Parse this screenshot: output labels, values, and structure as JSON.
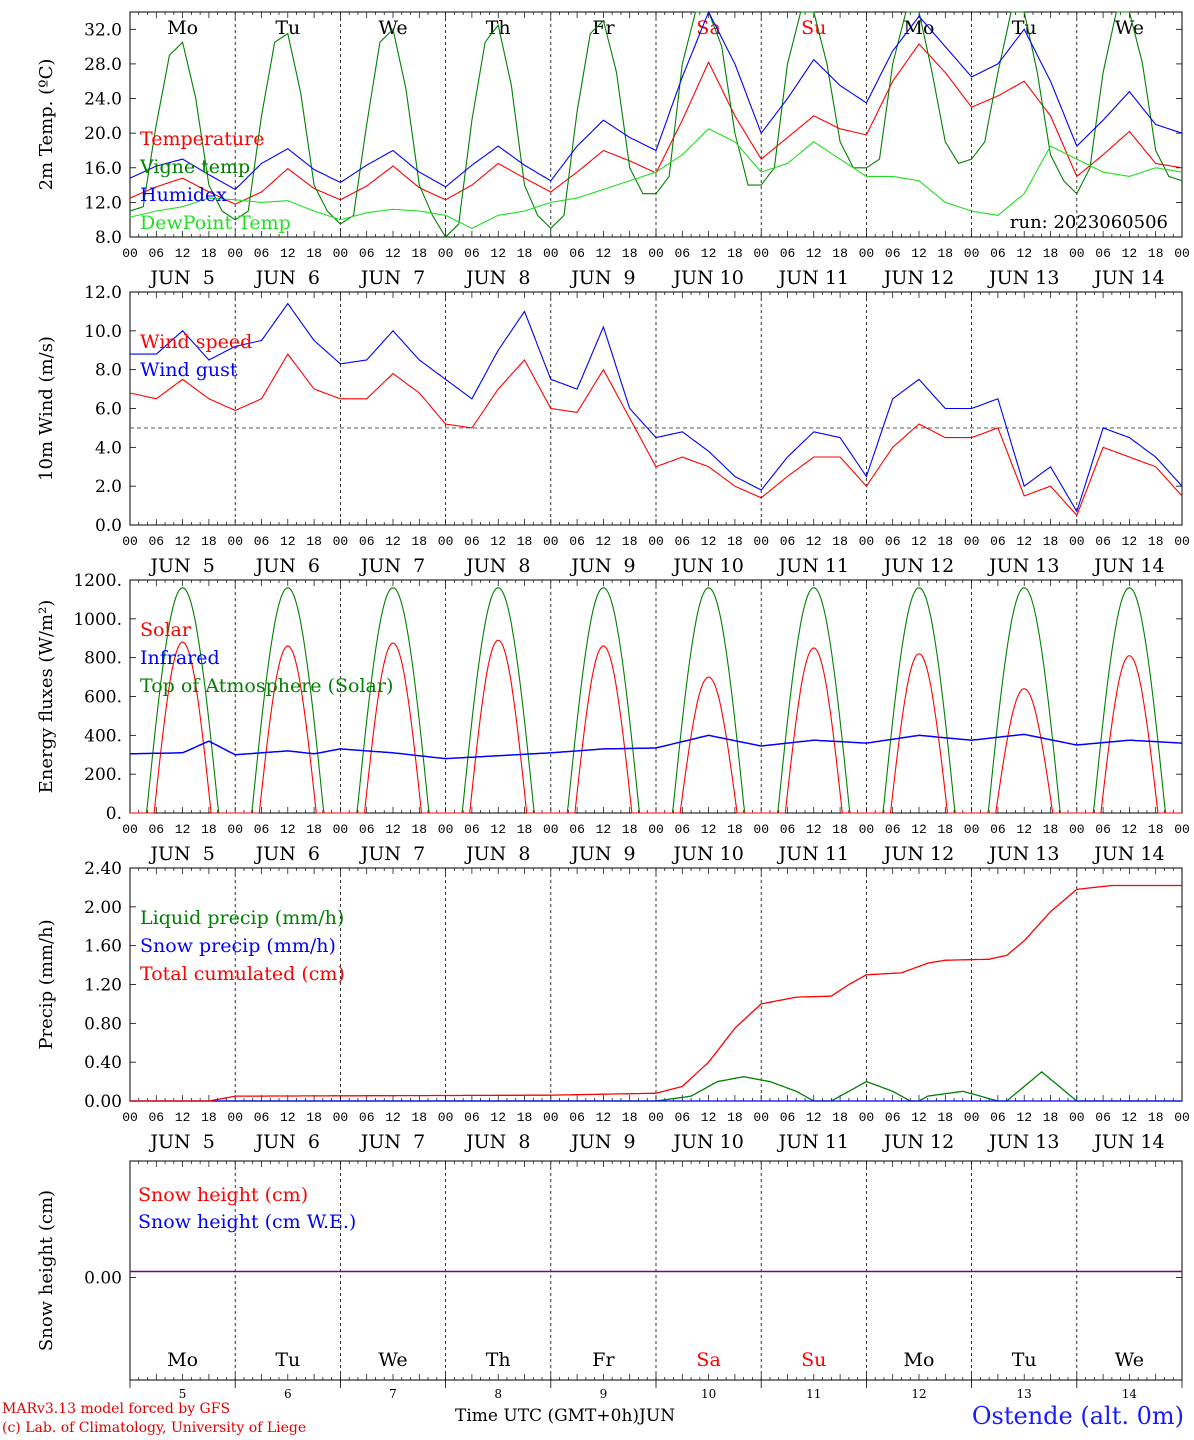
{
  "run_label": "run: 2023060506",
  "footer": {
    "credit_line1": "MARv3.13 model forced by GFS",
    "credit_line2": "(c) Lab. of Climatology, University of Liege",
    "time_axis_label": "Time UTC (GMT+0h)",
    "month_label": "JUN",
    "station": "Ostende (alt. 0m)"
  },
  "colors": {
    "red": "#ff0000",
    "blue": "#0000ff",
    "green": "#008000",
    "lightgreen": "#22dd22",
    "weekend": "#ff0000",
    "weekday": "#000000",
    "purple": "#800080"
  },
  "days": [
    {
      "abbr": "Mo",
      "date": "JUN  5",
      "num": "5",
      "weekend": false
    },
    {
      "abbr": "Tu",
      "date": "JUN  6",
      "num": "6",
      "weekend": false
    },
    {
      "abbr": "We",
      "date": "JUN  7",
      "num": "7",
      "weekend": false
    },
    {
      "abbr": "Th",
      "date": "JUN  8",
      "num": "8",
      "weekend": false
    },
    {
      "abbr": "Fr",
      "date": "JUN  9",
      "num": "9",
      "weekend": false
    },
    {
      "abbr": "Sa",
      "date": "JUN 10",
      "num": "10",
      "weekend": true
    },
    {
      "abbr": "Su",
      "date": "JUN 11",
      "num": "11",
      "weekend": true
    },
    {
      "abbr": "Mo",
      "date": "JUN 12",
      "num": "12",
      "weekend": false
    },
    {
      "abbr": "Tu",
      "date": "JUN 13",
      "num": "13",
      "weekend": false
    },
    {
      "abbr": "We",
      "date": "JUN 14",
      "num": "14",
      "weekend": false
    }
  ],
  "hour_ticks": [
    "00",
    "06",
    "12",
    "18"
  ],
  "chart_data": [
    {
      "id": "temperature",
      "type": "line",
      "ylabel": "2m Temp. (ºC)",
      "ylim": [
        8,
        34
      ],
      "yticks": [
        "8.0",
        "12.0",
        "16.0",
        "20.0",
        "24.0",
        "28.0",
        "32.0"
      ],
      "ytick_values": [
        8,
        12,
        16,
        20,
        24,
        28,
        32
      ],
      "xlim_hours": [
        0,
        240
      ],
      "show_day_abbr": true,
      "series": [
        {
          "name": "Temperature",
          "color": "#ff0000",
          "x": [
            0,
            6,
            12,
            18,
            24,
            30,
            36,
            42,
            48,
            54,
            60,
            66,
            72,
            78,
            84,
            90,
            96,
            102,
            108,
            114,
            120,
            126,
            132,
            138,
            144,
            150,
            156,
            162,
            168,
            174,
            180,
            186,
            192,
            198,
            204,
            210,
            216,
            222,
            228,
            234,
            240
          ],
          "y": [
            12.5,
            13.8,
            14.8,
            13.2,
            11.8,
            13.2,
            15.9,
            13.6,
            12.3,
            13.9,
            16.2,
            13.7,
            12.3,
            14.0,
            16.5,
            14.8,
            13.2,
            15.5,
            18.0,
            16.8,
            15.4,
            21.5,
            28.2,
            22.0,
            17.0,
            19.5,
            22.0,
            20.5,
            19.8,
            26.0,
            30.3,
            27.0,
            23.0,
            24.3,
            26.0,
            22.0,
            15.0,
            17.5,
            20.2,
            16.5,
            16.0
          ]
        },
        {
          "name": "Vigne temp",
          "color": "#008000",
          "x": [
            0,
            3,
            6,
            9,
            12,
            15,
            18,
            21,
            24,
            27,
            30,
            33,
            36,
            39,
            42,
            45,
            48,
            51,
            54,
            57,
            60,
            63,
            66,
            69,
            72,
            75,
            78,
            81,
            84,
            87,
            90,
            93,
            96,
            99,
            102,
            105,
            108,
            111,
            114,
            117,
            120,
            123,
            126,
            129,
            132,
            135,
            138,
            141,
            144,
            147,
            150,
            153,
            156,
            159,
            162,
            165,
            168,
            171,
            174,
            177,
            180,
            183,
            186,
            189,
            192,
            195,
            198,
            201,
            204,
            207,
            210,
            213,
            216,
            219,
            222,
            225,
            228,
            231,
            234,
            237,
            240
          ],
          "y": [
            11.0,
            11.5,
            21.0,
            29.0,
            30.5,
            24.0,
            14.0,
            11.0,
            10.0,
            11.0,
            22.0,
            30.5,
            31.5,
            24.5,
            14.0,
            11.0,
            9.5,
            10.5,
            21.0,
            30.5,
            32.0,
            25.0,
            14.0,
            10.5,
            8.0,
            9.5,
            21.5,
            30.5,
            32.5,
            25.5,
            14.0,
            10.5,
            9.0,
            10.5,
            22.5,
            31.5,
            33.0,
            27.0,
            16.0,
            13.0,
            13.0,
            15.0,
            28.0,
            34.0,
            34.0,
            30.0,
            20.0,
            14.0,
            14.0,
            16.0,
            28.0,
            34.0,
            34.0,
            28.0,
            19.0,
            16.0,
            16.0,
            17.0,
            28.0,
            34.0,
            34.0,
            27.0,
            19.0,
            16.5,
            17.0,
            19.0,
            27.0,
            34.0,
            34.0,
            27.0,
            17.5,
            14.5,
            13.0,
            16.0,
            27.0,
            34.0,
            34.0,
            28.0,
            18.0,
            15.0,
            14.5
          ]
        },
        {
          "name": "Humidex",
          "color": "#0000ff",
          "x": [
            0,
            6,
            12,
            18,
            24,
            30,
            36,
            42,
            48,
            54,
            60,
            66,
            72,
            78,
            84,
            90,
            96,
            102,
            108,
            114,
            120,
            126,
            132,
            138,
            144,
            150,
            156,
            162,
            168,
            174,
            180,
            186,
            192,
            198,
            204,
            210,
            216,
            222,
            228,
            234,
            240
          ],
          "y": [
            14.8,
            16.2,
            17.0,
            15.2,
            13.5,
            16.5,
            18.2,
            15.8,
            14.3,
            16.3,
            18.0,
            15.5,
            13.8,
            16.3,
            18.5,
            16.3,
            14.5,
            18.5,
            21.5,
            19.5,
            18.0,
            26.5,
            34.0,
            28.0,
            20.0,
            24.0,
            28.5,
            25.5,
            23.5,
            29.5,
            33.5,
            30.0,
            26.5,
            28.0,
            32.0,
            26.0,
            18.5,
            21.5,
            24.8,
            21.0,
            20.0
          ]
        },
        {
          "name": "DewPoint Temp",
          "color": "#22dd22",
          "x": [
            0,
            6,
            12,
            18,
            24,
            30,
            36,
            42,
            48,
            54,
            60,
            66,
            72,
            78,
            84,
            90,
            96,
            102,
            108,
            114,
            120,
            126,
            132,
            138,
            144,
            150,
            156,
            162,
            168,
            174,
            180,
            186,
            192,
            198,
            204,
            210,
            216,
            222,
            228,
            234,
            240
          ],
          "y": [
            10.3,
            11.0,
            11.5,
            12.5,
            12.3,
            12.0,
            12.2,
            11.0,
            10.0,
            10.8,
            11.2,
            11.0,
            10.5,
            9.0,
            10.5,
            11.0,
            12.0,
            12.5,
            13.5,
            14.5,
            15.5,
            17.5,
            20.5,
            19.0,
            15.5,
            16.5,
            19.0,
            17.0,
            15.0,
            15.0,
            14.5,
            12.0,
            11.0,
            10.5,
            13.0,
            18.5,
            17.0,
            15.5,
            15.0,
            16.0,
            15.5
          ]
        }
      ]
    },
    {
      "id": "wind",
      "type": "line",
      "ylabel": "10m Wind (m/s)",
      "ylim": [
        0,
        12
      ],
      "yticks": [
        "0.0",
        "2.0",
        "4.0",
        "6.0",
        "8.0",
        "10.0",
        "12.0"
      ],
      "ytick_values": [
        0,
        2,
        4,
        6,
        8,
        10,
        12
      ],
      "xlim_hours": [
        0,
        240
      ],
      "reference_line": 5,
      "series": [
        {
          "name": "Wind speed",
          "color": "#ff0000",
          "x": [
            0,
            6,
            12,
            18,
            24,
            30,
            36,
            42,
            48,
            54,
            60,
            66,
            72,
            78,
            84,
            90,
            96,
            102,
            108,
            114,
            120,
            126,
            132,
            138,
            144,
            150,
            156,
            162,
            168,
            174,
            180,
            186,
            192,
            198,
            204,
            210,
            216,
            222,
            228,
            234,
            240
          ],
          "y": [
            6.8,
            6.5,
            7.5,
            6.5,
            5.9,
            6.5,
            8.8,
            7.0,
            6.5,
            6.5,
            7.8,
            6.8,
            5.2,
            5.0,
            7.0,
            8.5,
            6.0,
            5.8,
            8.0,
            5.5,
            3.0,
            3.5,
            3.0,
            2.0,
            1.4,
            2.5,
            3.5,
            3.5,
            2.0,
            4.0,
            5.2,
            4.5,
            4.5,
            5.0,
            1.5,
            2.0,
            0.5,
            4.0,
            3.5,
            3.0,
            1.5
          ]
        },
        {
          "name": "Wind gust",
          "color": "#0000ff",
          "x": [
            0,
            6,
            12,
            18,
            24,
            30,
            36,
            42,
            48,
            54,
            60,
            66,
            72,
            78,
            84,
            90,
            96,
            102,
            108,
            114,
            120,
            126,
            132,
            138,
            144,
            150,
            156,
            162,
            168,
            174,
            180,
            186,
            192,
            198,
            204,
            210,
            216,
            222,
            228,
            234,
            240
          ],
          "y": [
            8.8,
            8.8,
            10.0,
            8.5,
            9.2,
            9.5,
            11.4,
            9.5,
            8.3,
            8.5,
            10.0,
            8.5,
            7.5,
            6.5,
            9.0,
            11.0,
            7.5,
            7.0,
            10.2,
            6.0,
            4.5,
            4.8,
            3.8,
            2.5,
            1.8,
            3.5,
            4.8,
            4.5,
            2.5,
            6.5,
            7.5,
            6.0,
            6.0,
            6.5,
            2.0,
            3.0,
            0.7,
            5.0,
            4.5,
            3.5,
            2.0
          ]
        }
      ]
    },
    {
      "id": "energy",
      "type": "line",
      "ylabel": "Energy fluxes (W/m²)",
      "ylim": [
        0,
        1200
      ],
      "yticks": [
        "0.",
        "200.",
        "400.",
        "600.",
        "800.",
        "1000.",
        "1200."
      ],
      "ytick_values": [
        0,
        200,
        400,
        600,
        800,
        1000,
        1200
      ],
      "xlim_hours": [
        0,
        240
      ],
      "series": [
        {
          "name": "Solar",
          "color": "#ff0000",
          "peaks": [
            880,
            860,
            875,
            890,
            860,
            700,
            850,
            820,
            640,
            810
          ]
        },
        {
          "name": "Infrared",
          "color": "#0000ff",
          "x": [
            0,
            12,
            18,
            24,
            36,
            42,
            48,
            60,
            72,
            84,
            96,
            108,
            120,
            132,
            144,
            156,
            168,
            180,
            192,
            204,
            216,
            228,
            240
          ],
          "y": [
            305,
            310,
            370,
            300,
            320,
            305,
            330,
            310,
            280,
            295,
            310,
            330,
            335,
            400,
            345,
            375,
            360,
            400,
            375,
            405,
            350,
            375,
            360
          ]
        },
        {
          "name": "Top of Atmosphere (Solar)",
          "color": "#008000",
          "peaks": [
            1160,
            1160,
            1160,
            1160,
            1160,
            1160,
            1160,
            1160,
            1160,
            1160
          ]
        }
      ]
    },
    {
      "id": "precip",
      "type": "line",
      "ylabel": "Precip (mm/h)",
      "ylim": [
        0,
        2.4
      ],
      "yticks": [
        "0.00",
        "0.40",
        "0.80",
        "1.20",
        "1.60",
        "2.00",
        "2.40"
      ],
      "ytick_values": [
        0,
        0.4,
        0.8,
        1.2,
        1.6,
        2.0,
        2.4
      ],
      "xlim_hours": [
        0,
        240
      ],
      "series": [
        {
          "name": "Liquid precip (mm/h)",
          "color": "#008000",
          "x": [
            0,
            120,
            128,
            134,
            140,
            146,
            152,
            156,
            160,
            162,
            168,
            174,
            178,
            180,
            182,
            190,
            194,
            198,
            200,
            204,
            208,
            212,
            216,
            240
          ],
          "y": [
            0,
            0,
            0.05,
            0.2,
            0.25,
            0.2,
            0.1,
            0,
            0,
            0.05,
            0.2,
            0.1,
            0,
            0,
            0.05,
            0.1,
            0.05,
            0,
            0,
            0.15,
            0.3,
            0.15,
            0,
            0
          ]
        },
        {
          "name": "Snow precip (mm/h)",
          "color": "#0000ff",
          "x": [
            0,
            240
          ],
          "y": [
            0,
            0
          ]
        },
        {
          "name": "Total cumulated (cm)",
          "color": "#ff0000",
          "x": [
            0,
            18,
            24,
            96,
            120,
            126,
            132,
            138,
            144,
            152,
            160,
            164,
            168,
            176,
            182,
            186,
            196,
            200,
            204,
            210,
            216,
            224,
            240
          ],
          "y": [
            0,
            0,
            0.05,
            0.06,
            0.08,
            0.15,
            0.4,
            0.75,
            1.0,
            1.07,
            1.08,
            1.2,
            1.3,
            1.32,
            1.42,
            1.45,
            1.46,
            1.5,
            1.65,
            1.95,
            2.18,
            2.22,
            2.22
          ]
        }
      ]
    },
    {
      "id": "snow",
      "type": "line",
      "ylabel": "Snow height (cm)",
      "yticks": [
        "0.00"
      ],
      "ytick_values": [
        0
      ],
      "xlim_hours": [
        0,
        240
      ],
      "series": [
        {
          "name": "Snow height (cm)",
          "color": "#ff0000",
          "x": [
            0,
            240
          ],
          "y": [
            0,
            0
          ]
        },
        {
          "name": "Snow height (cm W.E.)",
          "color": "#0000ff",
          "x": [
            0,
            240
          ],
          "y": [
            0,
            0
          ]
        }
      ]
    }
  ]
}
